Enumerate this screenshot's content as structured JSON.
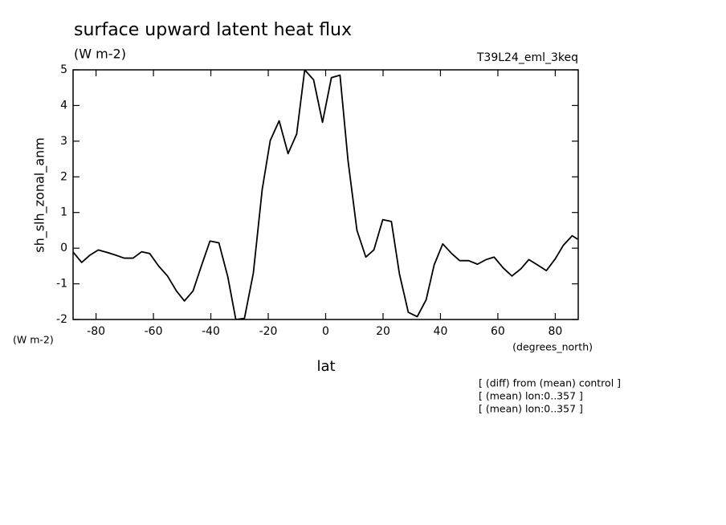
{
  "chart_data": {
    "type": "line",
    "title": "surface upward latent heat flux",
    "units_top": "(W m-2)",
    "experiment": "T39L24_eml_3keq",
    "ylabel": "sh_slh_zonal_anm",
    "yunits": "(W m-2)",
    "xunits": "(degrees_north)",
    "xlabel": "lat",
    "notes": [
      "[ (diff) from (mean) control ]",
      "[ (mean) lon:0..357 ]",
      "[ (mean) lon:0..357 ]"
    ],
    "xlim": [
      -88,
      88
    ],
    "ylim": [
      -2,
      5
    ],
    "xticks": [
      -80,
      -60,
      -40,
      -20,
      0,
      20,
      40,
      60,
      80
    ],
    "yticks": [
      -2,
      -1,
      0,
      1,
      2,
      3,
      4,
      5
    ],
    "x": [
      -88.1,
      -85.0,
      -82.2,
      -79.2,
      -76.1,
      -73.0,
      -70.2,
      -67.1,
      -64.1,
      -61.3,
      -58.2,
      -55.1,
      -52.0,
      -49.2,
      -46.2,
      -43.1,
      -40.3,
      -37.2,
      -34.1,
      -31.3,
      -28.3,
      -25.2,
      -22.1,
      -19.3,
      -16.2,
      -13.1,
      -10.1,
      -7.3,
      -4.2,
      -1.1,
      2.0,
      5.0,
      7.8,
      10.9,
      14.0,
      16.8,
      19.9,
      22.9,
      25.7,
      28.8,
      31.9,
      35.0,
      37.8,
      40.8,
      43.9,
      46.7,
      49.8,
      52.9,
      55.9,
      58.7,
      61.8,
      64.9,
      68.0,
      70.8,
      73.8,
      76.9,
      80.0,
      82.8,
      85.9,
      87.8
    ],
    "series": [
      {
        "color": "#000000",
        "values": [
          -0.1,
          -0.4,
          -0.2,
          -0.05,
          -0.12,
          -0.2,
          -0.28,
          -0.28,
          -0.1,
          -0.15,
          -0.5,
          -0.78,
          -1.2,
          -1.48,
          -1.2,
          -0.45,
          0.2,
          0.15,
          -0.8,
          -2.0,
          -1.97,
          -0.7,
          1.65,
          3.02,
          3.57,
          2.65,
          3.2,
          5.0,
          4.72,
          3.53,
          4.78,
          4.85,
          2.45,
          0.5,
          -0.25,
          -0.05,
          0.8,
          0.75,
          -0.72,
          -1.8,
          -1.92,
          -1.45,
          -0.47,
          0.12,
          -0.15,
          -0.35,
          -0.35,
          -0.45,
          -0.32,
          -0.25,
          -0.55,
          -0.78,
          -0.58,
          -0.32,
          -0.47,
          -0.63,
          -0.3,
          0.08,
          0.35,
          0.25
        ]
      }
    ]
  }
}
